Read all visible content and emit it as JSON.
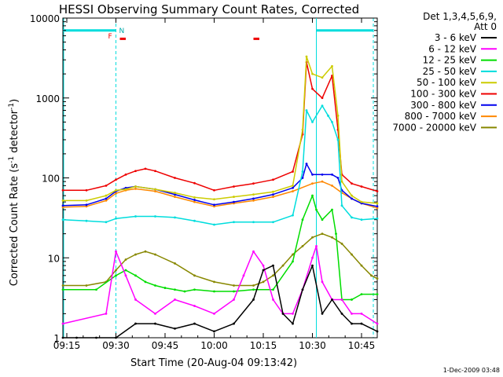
{
  "chart_data": {
    "type": "line",
    "title": "HESSI Observing Summary Count Rates, Corrected",
    "xlabel": "Start Time (20-Aug-04 09:13:42)",
    "ylabel_main": "Corrected Count Rate (s",
    "ylabel_sup1": "-1",
    "ylabel_mid": " detector",
    "ylabel_sup2": "-1",
    "ylabel_end": ")",
    "yscale": "log",
    "ylim": [
      1,
      10000
    ],
    "xlim_min": [
      9.23,
      10.83
    ],
    "xticks": [
      {
        "min": 9.25,
        "label": "09:15"
      },
      {
        "min": 9.5,
        "label": "09:30"
      },
      {
        "min": 9.75,
        "label": "09:45"
      },
      {
        "min": 10.0,
        "label": "10:00"
      },
      {
        "min": 10.25,
        "label": "10:15"
      },
      {
        "min": 10.5,
        "label": "10:30"
      },
      {
        "min": 10.75,
        "label": "10:45"
      }
    ],
    "yticks": [
      {
        "v": 1,
        "label": "1"
      },
      {
        "v": 10,
        "label": "10"
      },
      {
        "v": 100,
        "label": "100"
      },
      {
        "v": 1000,
        "label": "1000"
      },
      {
        "v": 10000,
        "label": "10000"
      }
    ],
    "legend_placement": "top-right",
    "legend_header": [
      "Det 1,3,4,5,6,9,",
      "Att 0"
    ],
    "series": [
      {
        "name": "3 - 6 keV",
        "color": "#000000",
        "x": [
          9.23,
          9.3,
          9.4,
          9.5,
          9.6,
          9.7,
          9.8,
          9.9,
          10.0,
          10.1,
          10.2,
          10.25,
          10.3,
          10.35,
          10.4,
          10.45,
          10.5,
          10.55,
          10.6,
          10.65,
          10.7,
          10.75,
          10.83
        ],
        "y": [
          1,
          1,
          1,
          1,
          1.5,
          1.5,
          1.3,
          1.5,
          1.2,
          1.5,
          3,
          7,
          8,
          2,
          1.5,
          4,
          8,
          2,
          3,
          2,
          1.5,
          1.5,
          1.2
        ]
      },
      {
        "name": "6 - 12 keV",
        "color": "#ff00ff",
        "x": [
          9.23,
          9.45,
          9.5,
          9.55,
          9.6,
          9.7,
          9.8,
          9.9,
          10.0,
          10.1,
          10.15,
          10.2,
          10.25,
          10.3,
          10.35,
          10.4,
          10.45,
          10.5,
          10.52,
          10.55,
          10.6,
          10.65,
          10.7,
          10.75,
          10.83
        ],
        "y": [
          1.5,
          2,
          12,
          6,
          3,
          2,
          3,
          2.5,
          2,
          3,
          6,
          12,
          8,
          3,
          2,
          2,
          4,
          10,
          14,
          5,
          3,
          3,
          2,
          2,
          1.5
        ]
      },
      {
        "name": "12 - 25 keV",
        "color": "#00dd00",
        "x": [
          9.23,
          9.4,
          9.5,
          9.55,
          9.6,
          9.65,
          9.7,
          9.75,
          9.8,
          9.85,
          9.9,
          10.0,
          10.1,
          10.2,
          10.3,
          10.4,
          10.45,
          10.5,
          10.52,
          10.55,
          10.6,
          10.62,
          10.65,
          10.7,
          10.75,
          10.83
        ],
        "y": [
          4,
          4,
          6,
          7,
          6,
          5,
          4.5,
          4.2,
          4,
          3.8,
          4,
          3.8,
          3.8,
          4,
          4,
          9,
          30,
          60,
          40,
          30,
          40,
          20,
          3,
          3,
          3.5,
          3.5
        ]
      },
      {
        "name": "25 - 50 keV",
        "color": "#00dddd",
        "x": [
          9.23,
          9.35,
          9.45,
          9.5,
          9.6,
          9.7,
          9.8,
          9.9,
          10.0,
          10.1,
          10.2,
          10.3,
          10.4,
          10.45,
          10.47,
          10.5,
          10.55,
          10.58,
          10.6,
          10.63,
          10.65,
          10.7,
          10.75,
          10.83
        ],
        "y": [
          30,
          29,
          28,
          31,
          33,
          33,
          32,
          29,
          26,
          28,
          28,
          28,
          34,
          120,
          700,
          500,
          800,
          600,
          500,
          300,
          45,
          32,
          30,
          31
        ]
      },
      {
        "name": "50 - 100 keV",
        "color": "#cccc00",
        "x": [
          9.23,
          9.35,
          9.45,
          9.5,
          9.55,
          9.6,
          9.7,
          9.8,
          9.9,
          10.0,
          10.1,
          10.2,
          10.3,
          10.4,
          10.45,
          10.47,
          10.5,
          10.55,
          10.6,
          10.63,
          10.65,
          10.7,
          10.75,
          10.83
        ],
        "y": [
          52,
          52,
          60,
          70,
          72,
          78,
          72,
          65,
          57,
          54,
          58,
          62,
          67,
          80,
          400,
          3300,
          2000,
          1800,
          2500,
          600,
          90,
          60,
          50,
          48
        ]
      },
      {
        "name": "100 - 300 keV",
        "color": "#ee0000",
        "x": [
          9.23,
          9.35,
          9.45,
          9.5,
          9.55,
          9.6,
          9.65,
          9.7,
          9.8,
          9.9,
          10.0,
          10.1,
          10.2,
          10.3,
          10.4,
          10.45,
          10.47,
          10.5,
          10.55,
          10.6,
          10.63,
          10.65,
          10.7,
          10.75,
          10.83
        ],
        "y": [
          70,
          70,
          80,
          95,
          110,
          122,
          130,
          122,
          100,
          86,
          70,
          78,
          85,
          95,
          120,
          350,
          2800,
          1300,
          1000,
          1900,
          400,
          110,
          85,
          78,
          68
        ]
      },
      {
        "name": "300 - 800 keV",
        "color": "#0000ee",
        "x": [
          9.23,
          9.35,
          9.45,
          9.5,
          9.55,
          9.6,
          9.7,
          9.8,
          9.9,
          10.0,
          10.1,
          10.2,
          10.3,
          10.4,
          10.45,
          10.47,
          10.5,
          10.55,
          10.6,
          10.63,
          10.65,
          10.7,
          10.75,
          10.83
        ],
        "y": [
          45,
          46,
          55,
          68,
          75,
          78,
          72,
          62,
          53,
          46,
          50,
          55,
          62,
          75,
          100,
          150,
          110,
          110,
          110,
          100,
          70,
          55,
          48,
          44
        ]
      },
      {
        "name": "800 - 7000 keV",
        "color": "#ff8800",
        "x": [
          9.23,
          9.35,
          9.45,
          9.5,
          9.55,
          9.6,
          9.7,
          9.8,
          9.9,
          10.0,
          10.1,
          10.2,
          10.3,
          10.4,
          10.5,
          10.55,
          10.6,
          10.65,
          10.7,
          10.75,
          10.83
        ],
        "y": [
          43,
          44,
          52,
          64,
          70,
          73,
          68,
          58,
          50,
          44,
          48,
          52,
          58,
          68,
          85,
          90,
          80,
          65,
          55,
          48,
          42
        ]
      },
      {
        "name": "7000 - 20000 keV",
        "color": "#888800",
        "x": [
          9.23,
          9.35,
          9.45,
          9.5,
          9.55,
          9.6,
          9.65,
          9.7,
          9.8,
          9.9,
          10.0,
          10.1,
          10.2,
          10.25,
          10.3,
          10.35,
          10.4,
          10.45,
          10.5,
          10.55,
          10.6,
          10.65,
          10.7,
          10.75,
          10.8,
          10.83
        ],
        "y": [
          4.5,
          4.5,
          5,
          7,
          9.5,
          11,
          12,
          11,
          8.5,
          6,
          5,
          4.5,
          4.5,
          5,
          6,
          8,
          11,
          14,
          18,
          20,
          18,
          15,
          11,
          8,
          6,
          5.5
        ]
      }
    ],
    "annotations": {
      "flag_n": "N",
      "flag_f": "F"
    },
    "timestamp": "1-Dec-2009 03:48"
  }
}
